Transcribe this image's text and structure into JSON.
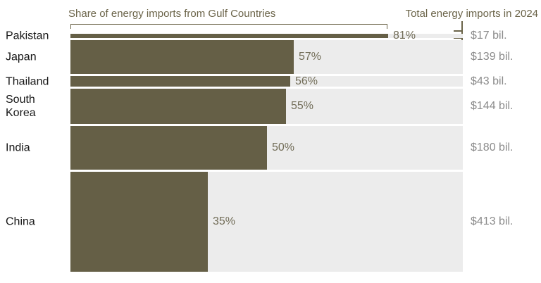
{
  "header": {
    "share_label": "Share of energy imports from Gulf Countries",
    "total_label": "Total energy imports in 2024"
  },
  "chart_data": {
    "type": "bar",
    "title": "",
    "subtitle": "",
    "categories": [
      "Pakistan",
      "Japan",
      "Thailand",
      "South Korea",
      "India",
      "China"
    ],
    "series": [
      {
        "name": "Share of energy imports from Gulf Countries (%)",
        "values": [
          81,
          57,
          56,
          55,
          50,
          35
        ]
      },
      {
        "name": "Total energy imports in 2024 ($ bil.)",
        "values": [
          17,
          139,
          43,
          144,
          180,
          413
        ]
      }
    ],
    "share_labels": [
      "81%",
      "57%",
      "56%",
      "55%",
      "50%",
      "35%"
    ],
    "total_labels": [
      "$17 bil.",
      "$139 bil.",
      "$43 bil.",
      "$144 bil.",
      "$180 bil.",
      "$413 bil."
    ],
    "share_axis_range": [
      0,
      100
    ],
    "encoding": "bar width encodes share of Gulf imports; row height encodes total energy imports in 2024",
    "legend_position": "top",
    "grid": false,
    "colors": {
      "bar": "#655f46",
      "track": "#ececec",
      "accent_text": "#6b6449",
      "percent_text": "#716c57",
      "value_text": "#8b8b8b",
      "country_text": "#161616",
      "background": "#ffffff"
    }
  }
}
